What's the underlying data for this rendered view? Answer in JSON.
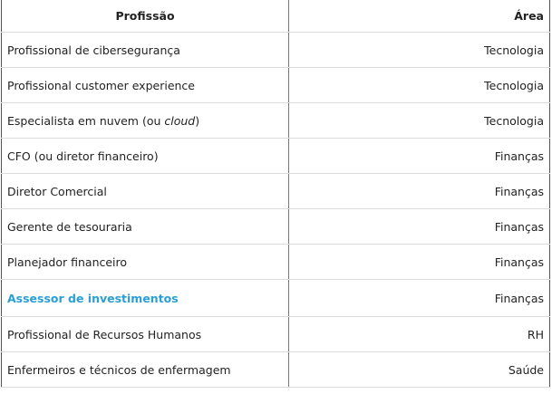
{
  "table": {
    "headers": [
      "Profissão",
      "Área"
    ],
    "link_color": "#2a9fd6",
    "rows": [
      {
        "profissao": "Profissional de cibersegurança",
        "area": "Tecnologia"
      },
      {
        "profissao": "Profissional customer experience",
        "area": "Tecnologia"
      },
      {
        "profissao": "Especialista em nuvem (ou ",
        "profissao_italic": "cloud",
        "profissao_end": ")",
        "area": "Tecnologia"
      },
      {
        "profissao": "CFO (ou diretor financeiro)",
        "area": "Finanças"
      },
      {
        "profissao": "Diretor Comercial",
        "area": "Finanças"
      },
      {
        "profissao": "Gerente de tesouraria",
        "area": "Finanças"
      },
      {
        "profissao": "Planejador financeiro",
        "area": "Finanças"
      },
      {
        "profissao": "Assessor de investimentos",
        "area": "Finanças",
        "is_link": true
      },
      {
        "profissao": "Profissional de Recursos Humanos",
        "area": "RH"
      },
      {
        "profissao": "Enfermeiros e técnicos de enfermagem",
        "area": "Saúde"
      }
    ]
  }
}
